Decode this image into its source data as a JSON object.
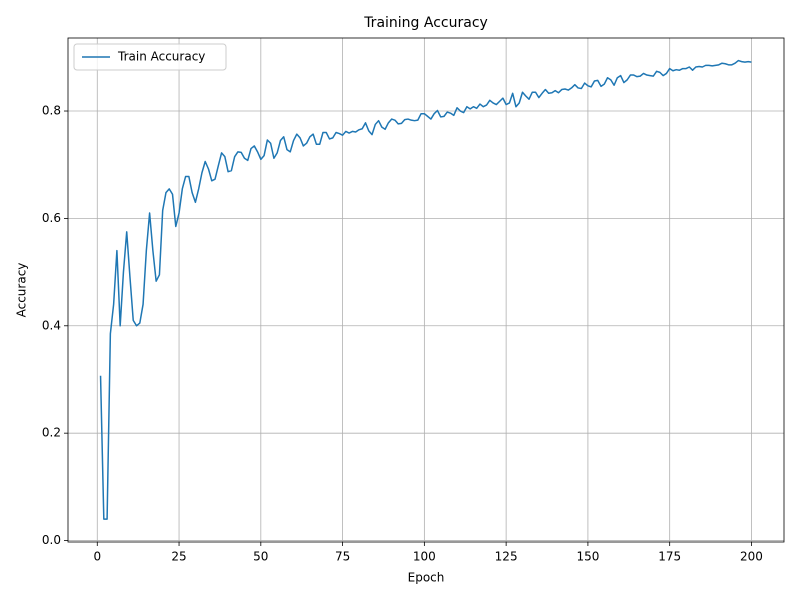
{
  "chart_data": {
    "type": "line",
    "title": "Training Accuracy",
    "xlabel": "Epoch",
    "ylabel": "Accuracy",
    "x": [
      1,
      2,
      3,
      4,
      5,
      6,
      7,
      8,
      9,
      10,
      11,
      12,
      13,
      14,
      15,
      16,
      17,
      18,
      19,
      20,
      21,
      22,
      23,
      24,
      25,
      26,
      27,
      28,
      29,
      30,
      31,
      32,
      33,
      34,
      35,
      36,
      37,
      38,
      39,
      40,
      41,
      42,
      43,
      44,
      45,
      46,
      47,
      48,
      49,
      50,
      51,
      52,
      53,
      54,
      55,
      56,
      57,
      58,
      59,
      60,
      61,
      62,
      63,
      64,
      65,
      66,
      67,
      68,
      69,
      70,
      71,
      72,
      73,
      74,
      75,
      76,
      77,
      78,
      79,
      80,
      81,
      82,
      83,
      84,
      85,
      86,
      87,
      88,
      89,
      90,
      91,
      92,
      93,
      94,
      95,
      96,
      97,
      98,
      99,
      100,
      101,
      102,
      103,
      104,
      105,
      106,
      107,
      108,
      109,
      110,
      111,
      112,
      113,
      114,
      115,
      116,
      117,
      118,
      119,
      120,
      121,
      122,
      123,
      124,
      125,
      126,
      127,
      128,
      129,
      130,
      131,
      132,
      133,
      134,
      135,
      136,
      137,
      138,
      139,
      140,
      141,
      142,
      143,
      144,
      145,
      146,
      147,
      148,
      149,
      150,
      151,
      152,
      153,
      154,
      155,
      156,
      157,
      158,
      159,
      160,
      161,
      162,
      163,
      164,
      165,
      166,
      167,
      168,
      169,
      170,
      171,
      172,
      173,
      174,
      175,
      176,
      177,
      178,
      179,
      180,
      181,
      182,
      183,
      184,
      185,
      186,
      187,
      188,
      189,
      190,
      191,
      192,
      193,
      194,
      195,
      196,
      197,
      198,
      199,
      200
    ],
    "series": [
      {
        "name": "Train Accuracy",
        "color": "#1f77b4",
        "values": [
          0.307,
          0.04,
          0.04,
          0.385,
          0.44,
          0.54,
          0.4,
          0.5,
          0.575,
          0.49,
          0.41,
          0.4,
          0.405,
          0.44,
          0.54,
          0.61,
          0.54,
          0.483,
          0.495,
          0.615,
          0.648,
          0.655,
          0.645,
          0.585,
          0.61,
          0.655,
          0.678,
          0.678,
          0.648,
          0.63,
          0.655,
          0.685,
          0.706,
          0.692,
          0.67,
          0.673,
          0.698,
          0.722,
          0.715,
          0.687,
          0.689,
          0.715,
          0.724,
          0.723,
          0.712,
          0.708,
          0.73,
          0.735,
          0.724,
          0.71,
          0.717,
          0.746,
          0.74,
          0.712,
          0.722,
          0.745,
          0.752,
          0.728,
          0.724,
          0.745,
          0.757,
          0.75,
          0.735,
          0.74,
          0.752,
          0.757,
          0.738,
          0.738,
          0.76,
          0.76,
          0.748,
          0.75,
          0.76,
          0.758,
          0.755,
          0.762,
          0.759,
          0.762,
          0.761,
          0.765,
          0.767,
          0.778,
          0.763,
          0.756,
          0.775,
          0.782,
          0.77,
          0.766,
          0.778,
          0.785,
          0.783,
          0.776,
          0.777,
          0.784,
          0.785,
          0.783,
          0.782,
          0.783,
          0.795,
          0.795,
          0.79,
          0.785,
          0.795,
          0.801,
          0.789,
          0.79,
          0.798,
          0.796,
          0.792,
          0.806,
          0.8,
          0.797,
          0.808,
          0.804,
          0.808,
          0.805,
          0.813,
          0.808,
          0.811,
          0.82,
          0.815,
          0.812,
          0.818,
          0.824,
          0.812,
          0.815,
          0.833,
          0.808,
          0.815,
          0.835,
          0.828,
          0.822,
          0.835,
          0.835,
          0.825,
          0.833,
          0.84,
          0.833,
          0.834,
          0.838,
          0.834,
          0.84,
          0.841,
          0.839,
          0.843,
          0.849,
          0.843,
          0.842,
          0.852,
          0.847,
          0.845,
          0.856,
          0.857,
          0.846,
          0.85,
          0.862,
          0.858,
          0.848,
          0.862,
          0.866,
          0.853,
          0.858,
          0.867,
          0.867,
          0.864,
          0.865,
          0.87,
          0.867,
          0.866,
          0.865,
          0.874,
          0.872,
          0.866,
          0.87,
          0.879,
          0.875,
          0.877,
          0.876,
          0.879,
          0.879,
          0.882,
          0.876,
          0.882,
          0.883,
          0.882,
          0.885,
          0.885,
          0.884,
          0.885,
          0.886,
          0.889,
          0.888,
          0.886,
          0.886,
          0.889,
          0.894,
          0.892,
          0.891,
          0.892,
          0.891
        ]
      }
    ],
    "xlim": [
      -8.95,
      209.95
    ],
    "xticks": [
      0,
      25,
      50,
      75,
      100,
      125,
      150,
      175,
      200
    ],
    "ylim": [
      -0.0027,
      0.936
    ],
    "yticks": [
      {
        "value": 0,
        "label": "0.0"
      },
      0.2,
      0.4,
      0.6,
      0.8
    ],
    "grid": true,
    "legend": "upper left"
  }
}
